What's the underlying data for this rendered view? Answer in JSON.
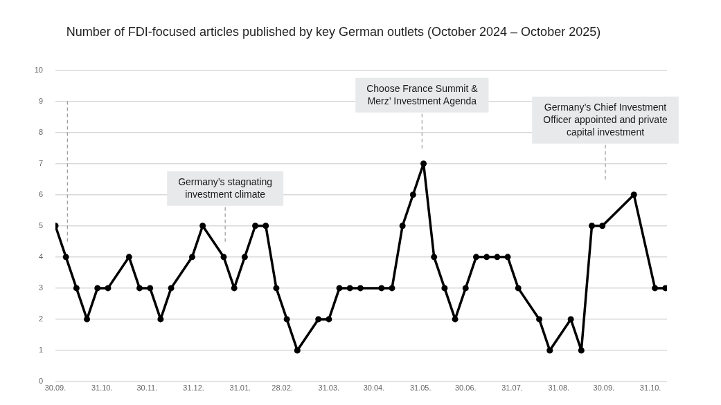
{
  "chart_data": {
    "type": "line",
    "title": "Number of FDI-focused articles published by key German outlets (October 2024 – October 2025)",
    "x": [
      "2024-09-30",
      "2024-10-07",
      "2024-10-14",
      "2024-10-21",
      "2024-10-28",
      "2024-11-04",
      "2024-11-18",
      "2024-11-25",
      "2024-12-02",
      "2024-12-09",
      "2024-12-16",
      "2024-12-30",
      "2025-01-06",
      "2025-01-20",
      "2025-01-27",
      "2025-02-03",
      "2025-02-10",
      "2025-02-17",
      "2025-02-24",
      "2025-03-03",
      "2025-03-10",
      "2025-03-24",
      "2025-03-31",
      "2025-04-07",
      "2025-04-14",
      "2025-04-21",
      "2025-05-05",
      "2025-05-12",
      "2025-05-19",
      "2025-05-26",
      "2025-06-02",
      "2025-06-09",
      "2025-06-16",
      "2025-06-23",
      "2025-06-30",
      "2025-07-07",
      "2025-07-14",
      "2025-07-21",
      "2025-07-28",
      "2025-08-04",
      "2025-08-18",
      "2025-08-25",
      "2025-09-08",
      "2025-09-15",
      "2025-09-22",
      "2025-09-29",
      "2025-10-20",
      "2025-11-03",
      "2025-11-10"
    ],
    "series": [
      {
        "color": "#000000",
        "values": [
          5,
          4,
          3,
          2,
          3,
          3,
          4,
          3,
          3,
          2,
          3,
          4,
          5,
          4,
          3,
          4,
          5,
          5,
          3,
          2,
          1,
          2,
          2,
          3,
          3,
          3,
          3,
          3,
          5,
          6,
          7,
          4,
          3,
          2,
          3,
          4,
          4,
          4,
          4,
          3,
          2,
          1,
          2,
          1,
          5,
          5,
          6,
          3,
          3
        ]
      }
    ],
    "xlim": [
      "2024-09-30",
      "2025-11-11"
    ],
    "xticks": [
      {
        "value": "2024-09-30",
        "label": "30.09."
      },
      {
        "value": "2024-10-31",
        "label": "31.10."
      },
      {
        "value": "2024-11-30",
        "label": "30.11."
      },
      {
        "value": "2024-12-31",
        "label": "31.12."
      },
      {
        "value": "2025-01-31",
        "label": "31.01."
      },
      {
        "value": "2025-02-28",
        "label": "28.02."
      },
      {
        "value": "2025-03-31",
        "label": "31.03."
      },
      {
        "value": "2025-04-30",
        "label": "30.04."
      },
      {
        "value": "2025-05-31",
        "label": "31.05."
      },
      {
        "value": "2025-06-30",
        "label": "30.06."
      },
      {
        "value": "2025-07-31",
        "label": "31.07."
      },
      {
        "value": "2025-08-31",
        "label": "31.08."
      },
      {
        "value": "2025-09-30",
        "label": "30.09."
      },
      {
        "value": "2025-10-31",
        "label": "31.10."
      }
    ],
    "ylim": [
      0,
      10
    ],
    "yticks": [
      0,
      1,
      2,
      3,
      4,
      5,
      6,
      7,
      8,
      9,
      10
    ],
    "grid": "y",
    "legend": false,
    "marker": "circle",
    "line_style": "solid",
    "ref_lines": [
      {
        "axis": "x",
        "value": "2024-10-08",
        "color": "#999999",
        "line_style": "dashed"
      },
      {
        "axis": "x",
        "value": "2025-01-21",
        "color": "#999999",
        "line_style": "dashed",
        "label": "Germany’s stagnating\ninvestment climate"
      },
      {
        "axis": "x",
        "value": "2025-06-01",
        "color": "#999999",
        "line_style": "dashed",
        "label": "Choose France Summit &\nMerz’ Investment Agenda"
      },
      {
        "axis": "x",
        "value": "2025-10-01",
        "color": "#999999",
        "line_style": "dashed",
        "label": "Germany’s Chief Investment\nOfficer appointed and private\ncapital investment"
      }
    ]
  }
}
